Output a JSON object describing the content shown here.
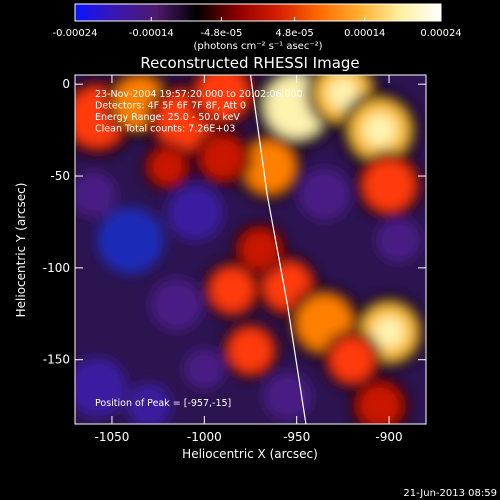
{
  "colorbar": {
    "tick_labels": [
      "-0.00024",
      "-0.00014",
      "-4.8e-05",
      "4.8e-05",
      "0.00014",
      "0.00024"
    ],
    "tick_values": [
      -0.00024,
      -0.00014,
      -4.8e-05,
      4.8e-05,
      0.00014,
      0.00024
    ],
    "range": [
      -0.00024,
      0.00024
    ],
    "units_text": "(photons cm⁻² s⁻¹ asec⁻²)",
    "colors": [
      "#0b13ff",
      "#3a18b0",
      "#4d1a6a",
      "#000000",
      "#8e0000",
      "#d81e00",
      "#ff6a00",
      "#ffb030",
      "#fff0a0",
      "#ffffff"
    ]
  },
  "chart_data": {
    "type": "heatmap",
    "title": "Reconstructed RHESSI Image",
    "xlabel": "Heliocentric X (arcsec)",
    "ylabel": "Heliocentric Y (arcsec)",
    "xlim": [
      -1070,
      -880
    ],
    "ylim": [
      -185,
      5
    ],
    "x_ticks": [
      -1050,
      -1000,
      -950,
      -900
    ],
    "y_ticks": [
      0,
      -50,
      -100,
      -150
    ],
    "annotations": [
      "23-Nov-2004 19:57:20.000 to 20:02:06.000",
      "Detectors: 4F 5F 6F 7F 8F, Att 0",
      "Energy Range: 25.0 - 50.0 keV",
      "Clean    Total counts: 7.26E+03"
    ],
    "peak_label": "Position of Peak = [-957,-15]",
    "peak_position": [
      -957,
      -15
    ],
    "limb_curve": [
      [
        -975,
        5
      ],
      [
        -966,
        -60
      ],
      [
        -955,
        -120
      ],
      [
        -945,
        -185
      ]
    ],
    "blobs": [
      {
        "x": -1058,
        "y": -18,
        "r": 16,
        "v": 0.5
      },
      {
        "x": -1035,
        "y": -10,
        "r": 14,
        "v": 0.6
      },
      {
        "x": -1010,
        "y": -20,
        "r": 16,
        "v": 0.55
      },
      {
        "x": -990,
        "y": -5,
        "r": 14,
        "v": 0.5
      },
      {
        "x": -950,
        "y": -12,
        "r": 17,
        "v": 1.0
      },
      {
        "x": -925,
        "y": -5,
        "r": 15,
        "v": 0.85
      },
      {
        "x": -905,
        "y": -25,
        "r": 16,
        "v": 0.75
      },
      {
        "x": -965,
        "y": -45,
        "r": 14,
        "v": 0.6
      },
      {
        "x": -900,
        "y": -55,
        "r": 14,
        "v": 0.55
      },
      {
        "x": -990,
        "y": -40,
        "r": 12,
        "v": 0.35
      },
      {
        "x": -1060,
        "y": -60,
        "r": 12,
        "v": -0.45
      },
      {
        "x": -1040,
        "y": -85,
        "r": 18,
        "v": -0.7
      },
      {
        "x": -1005,
        "y": -70,
        "r": 15,
        "v": -0.5
      },
      {
        "x": -935,
        "y": -60,
        "r": 14,
        "v": -0.4
      },
      {
        "x": -895,
        "y": -85,
        "r": 12,
        "v": -0.35
      },
      {
        "x": -1015,
        "y": -120,
        "r": 14,
        "v": -0.45
      },
      {
        "x": -985,
        "y": -112,
        "r": 12,
        "v": 0.45
      },
      {
        "x": -955,
        "y": -110,
        "r": 13,
        "v": 0.55
      },
      {
        "x": -935,
        "y": -130,
        "r": 15,
        "v": 0.6
      },
      {
        "x": -900,
        "y": -135,
        "r": 15,
        "v": 0.8
      },
      {
        "x": -920,
        "y": -150,
        "r": 12,
        "v": 0.5
      },
      {
        "x": -975,
        "y": -145,
        "r": 12,
        "v": 0.45
      },
      {
        "x": -1000,
        "y": -155,
        "r": 11,
        "v": -0.4
      },
      {
        "x": -1058,
        "y": -165,
        "r": 16,
        "v": -0.6
      },
      {
        "x": -1030,
        "y": -175,
        "r": 12,
        "v": -0.5
      },
      {
        "x": -955,
        "y": -170,
        "r": 13,
        "v": -0.45
      },
      {
        "x": -905,
        "y": -175,
        "r": 12,
        "v": 0.35
      },
      {
        "x": -1020,
        "y": -45,
        "r": 10,
        "v": 0.3
      },
      {
        "x": -970,
        "y": -90,
        "r": 11,
        "v": 0.3
      }
    ]
  },
  "footer": {
    "timestamp": "21-Jun-2013 08:59"
  }
}
